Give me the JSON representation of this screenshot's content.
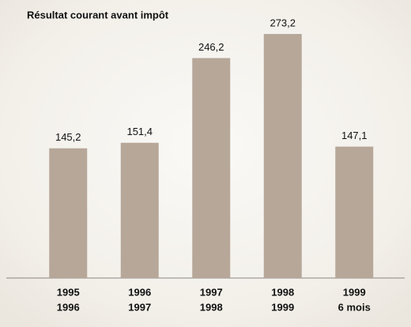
{
  "chart_data": {
    "type": "bar",
    "title": "Résultat courant avant impôt",
    "categories": [
      [
        "1995",
        "1996"
      ],
      [
        "1996",
        "1997"
      ],
      [
        "1997",
        "1998"
      ],
      [
        "1998",
        "1999"
      ],
      [
        "1999",
        "6 mois"
      ]
    ],
    "values": [
      145.2,
      151.4,
      246.2,
      273.2,
      147.1
    ],
    "value_labels": [
      "145,2",
      "151,4",
      "246,2",
      "273,2",
      "147,1"
    ],
    "color": "#b6a799"
  }
}
